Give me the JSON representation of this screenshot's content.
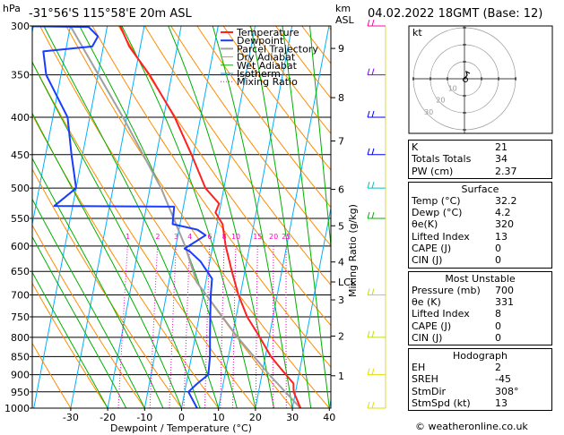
{
  "title_left": "-31°56'S 115°58'E 20m ASL",
  "title_right": "04.02.2022 18GMT (Base: 12)",
  "hpa_label": "hPa",
  "km_label_1": "km",
  "km_label_2": "ASL",
  "footer": "© weatheronline.co.uk",
  "hodograph_label": "kt",
  "colors": {
    "temperature": "#ff2020",
    "dewpoint": "#1a3cff",
    "parcel": "#a0a0a0",
    "dry_adiabat": "#ff8c00",
    "wet_adiabat": "#00b000",
    "isotherm": "#00b0ff",
    "mixing_ratio": "#ff00c8"
  },
  "chart_data": {
    "type": "skew-t",
    "xlabel": "Dewpoint / Temperature (°C)",
    "ylabel_right": "Mixing Ratio (g/kg)",
    "x_ticks": [
      -30,
      -20,
      -10,
      0,
      10,
      20,
      30,
      40
    ],
    "pressure_levels": [
      300,
      350,
      400,
      450,
      500,
      550,
      600,
      650,
      700,
      750,
      800,
      850,
      900,
      950,
      1000
    ],
    "km_ticks": [
      {
        "label": "1",
        "p": 903
      },
      {
        "label": "2",
        "p": 797
      },
      {
        "label": "3",
        "p": 711
      },
      {
        "label": "4",
        "p": 631
      },
      {
        "label": "5",
        "p": 563
      },
      {
        "label": "6",
        "p": 502
      },
      {
        "label": "7",
        "p": 431
      },
      {
        "label": "8",
        "p": 376
      },
      {
        "label": "9",
        "p": 322
      }
    ],
    "lcl": {
      "label": "LCL",
      "p": 672
    },
    "mixing_ratio_labels": [
      "1",
      "2",
      "3",
      "4",
      "6",
      "8",
      "10",
      "15",
      "20",
      "25"
    ],
    "mixing_ratio_values": [
      1,
      2,
      3,
      4,
      6,
      8,
      10,
      15,
      20,
      25
    ],
    "legend": [
      "Temperature",
      "Dewpoint",
      "Parcel Trajectory",
      "Dry Adiabat",
      "Wet Adiabat",
      "Isotherm",
      "Mixing Ratio"
    ],
    "temperature": [
      {
        "p": 1000,
        "t": 32.2
      },
      {
        "p": 950,
        "t": 29.5
      },
      {
        "p": 925,
        "t": 29.0
      },
      {
        "p": 900,
        "t": 26.5
      },
      {
        "p": 850,
        "t": 21.5
      },
      {
        "p": 800,
        "t": 17.5
      },
      {
        "p": 750,
        "t": 13.0
      },
      {
        "p": 700,
        "t": 9.5
      },
      {
        "p": 650,
        "t": 6.5
      },
      {
        "p": 600,
        "t": 3.5
      },
      {
        "p": 560,
        "t": 1.5
      },
      {
        "p": 540,
        "t": -1.0
      },
      {
        "p": 525,
        "t": -0.5
      },
      {
        "p": 500,
        "t": -5.0
      },
      {
        "p": 450,
        "t": -10.5
      },
      {
        "p": 400,
        "t": -17.0
      },
      {
        "p": 350,
        "t": -26.0
      },
      {
        "p": 320,
        "t": -33.0
      },
      {
        "p": 300,
        "t": -36.5
      }
    ],
    "dewpoint": [
      {
        "p": 1000,
        "t": 4.2
      },
      {
        "p": 950,
        "t": 1.0
      },
      {
        "p": 925,
        "t": 3.0
      },
      {
        "p": 900,
        "t": 5.5
      },
      {
        "p": 850,
        "t": 5.0
      },
      {
        "p": 800,
        "t": 4.0
      },
      {
        "p": 750,
        "t": 3.0
      },
      {
        "p": 700,
        "t": 2.0
      },
      {
        "p": 665,
        "t": 1.5
      },
      {
        "p": 630,
        "t": -2.5
      },
      {
        "p": 610,
        "t": -6.0
      },
      {
        "p": 605,
        "t": -7.5
      },
      {
        "p": 580,
        "t": -2.5
      },
      {
        "p": 570,
        "t": -5.0
      },
      {
        "p": 560,
        "t": -12.0
      },
      {
        "p": 530,
        "t": -12.5
      },
      {
        "p": 529,
        "t": -45.0
      },
      {
        "p": 500,
        "t": -40.0
      },
      {
        "p": 450,
        "t": -43.0
      },
      {
        "p": 400,
        "t": -46.0
      },
      {
        "p": 350,
        "t": -54.0
      },
      {
        "p": 325,
        "t": -56.0
      },
      {
        "p": 320,
        "t": -43.0
      },
      {
        "p": 310,
        "t": -42.0
      },
      {
        "p": 301,
        "t": -45.0
      },
      {
        "p": 300,
        "t": -68.0
      }
    ],
    "parcel": [
      {
        "p": 1000,
        "t": 32.2
      },
      {
        "p": 900,
        "t": 22.0
      },
      {
        "p": 800,
        "t": 11.5
      },
      {
        "p": 672,
        "t": -2.5
      },
      {
        "p": 600,
        "t": -7.5
      },
      {
        "p": 500,
        "t": -17.0
      },
      {
        "p": 400,
        "t": -31.0
      },
      {
        "p": 300,
        "t": -50.0
      }
    ],
    "wind_barbs": [
      {
        "p": 300,
        "color": "#ff00aa"
      },
      {
        "p": 350,
        "color": "#8000ff"
      },
      {
        "p": 400,
        "color": "#0000ff"
      },
      {
        "p": 450,
        "color": "#0000ff"
      },
      {
        "p": 500,
        "color": "#00c0c0"
      },
      {
        "p": 550,
        "color": "#00b000"
      },
      {
        "p": 700,
        "color": "#c0e000"
      },
      {
        "p": 800,
        "color": "#c0e000"
      },
      {
        "p": 900,
        "color": "#e0e000"
      },
      {
        "p": 1000,
        "color": "#e0e000"
      }
    ]
  },
  "indices": {
    "rows": [
      {
        "label": "K",
        "value": "21"
      },
      {
        "label": "Totals Totals",
        "value": "34"
      },
      {
        "label": "PW (cm)",
        "value": "2.37"
      }
    ]
  },
  "surface": {
    "title": "Surface",
    "rows": [
      {
        "label": "Temp (°C)",
        "value": "32.2"
      },
      {
        "label": "Dewp (°C)",
        "value": "4.2"
      },
      {
        "label": "θe(K)",
        "value": "320"
      },
      {
        "label": "Lifted Index",
        "value": "13"
      },
      {
        "label": "CAPE (J)",
        "value": "0"
      },
      {
        "label": "CIN (J)",
        "value": "0"
      }
    ]
  },
  "most_unstable": {
    "title": "Most Unstable",
    "rows": [
      {
        "label": "Pressure (mb)",
        "value": "700"
      },
      {
        "label": "θe (K)",
        "value": "331"
      },
      {
        "label": "Lifted Index",
        "value": "8"
      },
      {
        "label": "CAPE (J)",
        "value": "0"
      },
      {
        "label": "CIN (J)",
        "value": "0"
      }
    ]
  },
  "hodograph": {
    "title": "Hodograph",
    "ring_labels": [
      "10",
      "20",
      "30"
    ],
    "rows": [
      {
        "label": "EH",
        "value": "2"
      },
      {
        "label": "SREH",
        "value": "-45"
      },
      {
        "label": "StmDir",
        "value": "308°"
      },
      {
        "label": "StmSpd (kt)",
        "value": "13"
      }
    ]
  }
}
